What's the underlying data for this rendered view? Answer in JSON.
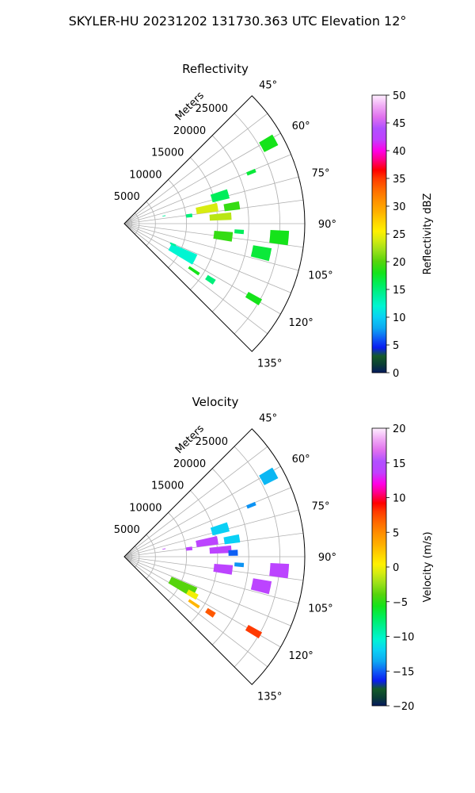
{
  "suptitle": "SKYLER-HU  20231202  131730.363 UTC Elevation 12°",
  "colors": {
    "grid": "#b0b0b0",
    "frame": "#000000",
    "background": "#ffffff"
  },
  "chart_data": [
    {
      "type": "polar-sector",
      "title": "Reflectivity",
      "r_axis_label": "Meters",
      "r_ticks": [
        "5000",
        "10000",
        "15000",
        "20000",
        "25000"
      ],
      "r_tick_values": [
        5000,
        10000,
        15000,
        20000,
        25000
      ],
      "r_max": 29000,
      "theta_range_deg": [
        45,
        135
      ],
      "theta_ticks": [
        "45°",
        "60°",
        "75°",
        "90°",
        "105°",
        "120°",
        "135°"
      ],
      "theta_tick_values": [
        45,
        60,
        75,
        90,
        105,
        120,
        135
      ],
      "colorbar": {
        "label": "Reflectivity dBZ",
        "range": [
          0,
          50
        ],
        "ticks": [
          "0",
          "5",
          "10",
          "15",
          "20",
          "25",
          "30",
          "35",
          "40",
          "45",
          "50"
        ],
        "tick_values": [
          0,
          5,
          10,
          15,
          20,
          25,
          30,
          35,
          40,
          45,
          50
        ],
        "stops": [
          [
            0,
            "#06195e"
          ],
          [
            1.5,
            "#0b3f34"
          ],
          [
            3,
            "#145a28"
          ],
          [
            4.5,
            "#0a1cf0"
          ],
          [
            6,
            "#0e55f5"
          ],
          [
            8,
            "#0ca8f2"
          ],
          [
            10,
            "#0ad0f5"
          ],
          [
            12,
            "#00f5d2"
          ],
          [
            14,
            "#00f09a"
          ],
          [
            16,
            "#00ee5a"
          ],
          [
            18,
            "#15e31a"
          ],
          [
            20,
            "#55d40c"
          ],
          [
            22,
            "#9ae01a"
          ],
          [
            24,
            "#d8ec10"
          ],
          [
            25.5,
            "#fff000"
          ],
          [
            27,
            "#ffd700"
          ],
          [
            29,
            "#ffb000"
          ],
          [
            31,
            "#ff9000"
          ],
          [
            33,
            "#ff6a00"
          ],
          [
            35,
            "#ff3a00"
          ],
          [
            36.5,
            "#ff0000"
          ],
          [
            38.5,
            "#ff0090"
          ],
          [
            40,
            "#ff00e6"
          ],
          [
            42,
            "#c040ff"
          ],
          [
            44,
            "#b050ff"
          ],
          [
            46,
            "#e070ee"
          ],
          [
            48,
            "#f0aaf5"
          ],
          [
            50,
            "#fff0ff"
          ]
        ]
      },
      "cells": [
        {
          "theta": 61,
          "r": 26500,
          "dtheta": 4,
          "dr": 2500,
          "value": 18
        },
        {
          "theta": 68,
          "r": 22000,
          "dtheta": 1.5,
          "dr": 1500,
          "value": 17
        },
        {
          "theta": 74,
          "r": 16000,
          "dtheta": 5,
          "dr": 2800,
          "value": 16
        },
        {
          "theta": 80,
          "r": 13500,
          "dtheta": 5,
          "dr": 3500,
          "value": 24
        },
        {
          "theta": 81,
          "r": 17500,
          "dtheta": 4,
          "dr": 2500,
          "value": 19
        },
        {
          "theta": 86,
          "r": 15500,
          "dtheta": 4,
          "dr": 3500,
          "value": 23
        },
        {
          "theta": 83,
          "r": 10500,
          "dtheta": 3,
          "dr": 1000,
          "value": 15
        },
        {
          "theta": 95,
          "r": 25000,
          "dtheta": 5,
          "dr": 3000,
          "value": 18
        },
        {
          "theta": 102,
          "r": 22500,
          "dtheta": 5,
          "dr": 3000,
          "value": 17
        },
        {
          "theta": 97,
          "r": 16000,
          "dtheta": 5,
          "dr": 3000,
          "value": 19
        },
        {
          "theta": 94,
          "r": 18500,
          "dtheta": 2,
          "dr": 1500,
          "value": 16
        },
        {
          "theta": 117,
          "r": 10500,
          "dtheta": 8,
          "dr": 4500,
          "value": 12
        },
        {
          "theta": 113,
          "r": 8500,
          "dtheta": 2,
          "dr": 1000,
          "value": 14
        },
        {
          "theta": 124,
          "r": 13500,
          "dtheta": 2,
          "dr": 2000,
          "value": 18
        },
        {
          "theta": 123,
          "r": 16500,
          "dtheta": 3,
          "dr": 1500,
          "value": 15
        },
        {
          "theta": 120,
          "r": 24000,
          "dtheta": 2.5,
          "dr": 2500,
          "value": 18
        },
        {
          "theta": 79,
          "r": 6500,
          "dtheta": 1,
          "dr": 500,
          "value": 14
        }
      ]
    },
    {
      "type": "polar-sector",
      "title": "Velocity",
      "r_axis_label": "Meters",
      "r_ticks": [
        "5000",
        "10000",
        "15000",
        "20000",
        "25000"
      ],
      "r_tick_values": [
        5000,
        10000,
        15000,
        20000,
        25000
      ],
      "r_max": 29000,
      "theta_range_deg": [
        45,
        135
      ],
      "theta_ticks": [
        "45°",
        "60°",
        "75°",
        "90°",
        "105°",
        "120°",
        "135°"
      ],
      "theta_tick_values": [
        45,
        60,
        75,
        90,
        105,
        120,
        135
      ],
      "colorbar": {
        "label": "Velocity (m/s)",
        "range": [
          -20,
          20
        ],
        "ticks": [
          "−20",
          "−15",
          "−10",
          "−5",
          "0",
          "5",
          "10",
          "15",
          "20"
        ],
        "tick_values": [
          -20,
          -15,
          -10,
          -5,
          0,
          5,
          10,
          15,
          20
        ],
        "stops": [
          [
            -20,
            "#06195e"
          ],
          [
            -18.8,
            "#0b3f34"
          ],
          [
            -17.6,
            "#145a28"
          ],
          [
            -16.4,
            "#0a1cf0"
          ],
          [
            -15.2,
            "#0e55f5"
          ],
          [
            -13.6,
            "#0ca8f2"
          ],
          [
            -12,
            "#0ad0f5"
          ],
          [
            -10.4,
            "#00f5d2"
          ],
          [
            -8.8,
            "#00f09a"
          ],
          [
            -7.2,
            "#00ee5a"
          ],
          [
            -5.6,
            "#15e31a"
          ],
          [
            -4,
            "#55d40c"
          ],
          [
            -2.4,
            "#9ae01a"
          ],
          [
            -0.8,
            "#d8ec10"
          ],
          [
            0.4,
            "#fff000"
          ],
          [
            1.6,
            "#ffd700"
          ],
          [
            3.2,
            "#ffb000"
          ],
          [
            4.8,
            "#ff9000"
          ],
          [
            6.4,
            "#ff6a00"
          ],
          [
            8,
            "#ff3a00"
          ],
          [
            9.2,
            "#ff0000"
          ],
          [
            10.8,
            "#ff0090"
          ],
          [
            12,
            "#ff00e6"
          ],
          [
            13.6,
            "#c040ff"
          ],
          [
            15.2,
            "#b050ff"
          ],
          [
            16.8,
            "#e070ee"
          ],
          [
            18.4,
            "#f0aaf5"
          ],
          [
            20,
            "#fff0ff"
          ]
        ]
      },
      "cells": [
        {
          "theta": 61,
          "r": 26500,
          "dtheta": 4,
          "dr": 2500,
          "value": -13
        },
        {
          "theta": 68,
          "r": 22000,
          "dtheta": 1.5,
          "dr": 1500,
          "value": -14
        },
        {
          "theta": 74,
          "r": 16000,
          "dtheta": 5,
          "dr": 2800,
          "value": -12
        },
        {
          "theta": 80,
          "r": 13500,
          "dtheta": 5,
          "dr": 3500,
          "value": 14
        },
        {
          "theta": 81,
          "r": 17500,
          "dtheta": 4,
          "dr": 2500,
          "value": -12
        },
        {
          "theta": 86,
          "r": 15500,
          "dtheta": 4,
          "dr": 3500,
          "value": 14
        },
        {
          "theta": 88,
          "r": 17500,
          "dtheta": 3,
          "dr": 1500,
          "value": -15
        },
        {
          "theta": 83,
          "r": 10500,
          "dtheta": 3,
          "dr": 1000,
          "value": 14
        },
        {
          "theta": 95,
          "r": 25000,
          "dtheta": 5,
          "dr": 3000,
          "value": 14
        },
        {
          "theta": 102,
          "r": 22500,
          "dtheta": 5,
          "dr": 3000,
          "value": 14
        },
        {
          "theta": 97,
          "r": 16000,
          "dtheta": 5,
          "dr": 3000,
          "value": 14
        },
        {
          "theta": 94,
          "r": 18500,
          "dtheta": 2,
          "dr": 1500,
          "value": -14
        },
        {
          "theta": 117,
          "r": 10500,
          "dtheta": 8,
          "dr": 4500,
          "value": -4
        },
        {
          "theta": 119,
          "r": 12500,
          "dtheta": 4,
          "dr": 1800,
          "value": 0
        },
        {
          "theta": 124,
          "r": 13500,
          "dtheta": 2,
          "dr": 2000,
          "value": 3
        },
        {
          "theta": 123,
          "r": 16500,
          "dtheta": 3,
          "dr": 1500,
          "value": 7
        },
        {
          "theta": 120,
          "r": 24000,
          "dtheta": 2.5,
          "dr": 2500,
          "value": 8
        },
        {
          "theta": 79,
          "r": 6500,
          "dtheta": 1,
          "dr": 500,
          "value": 14
        }
      ]
    }
  ]
}
